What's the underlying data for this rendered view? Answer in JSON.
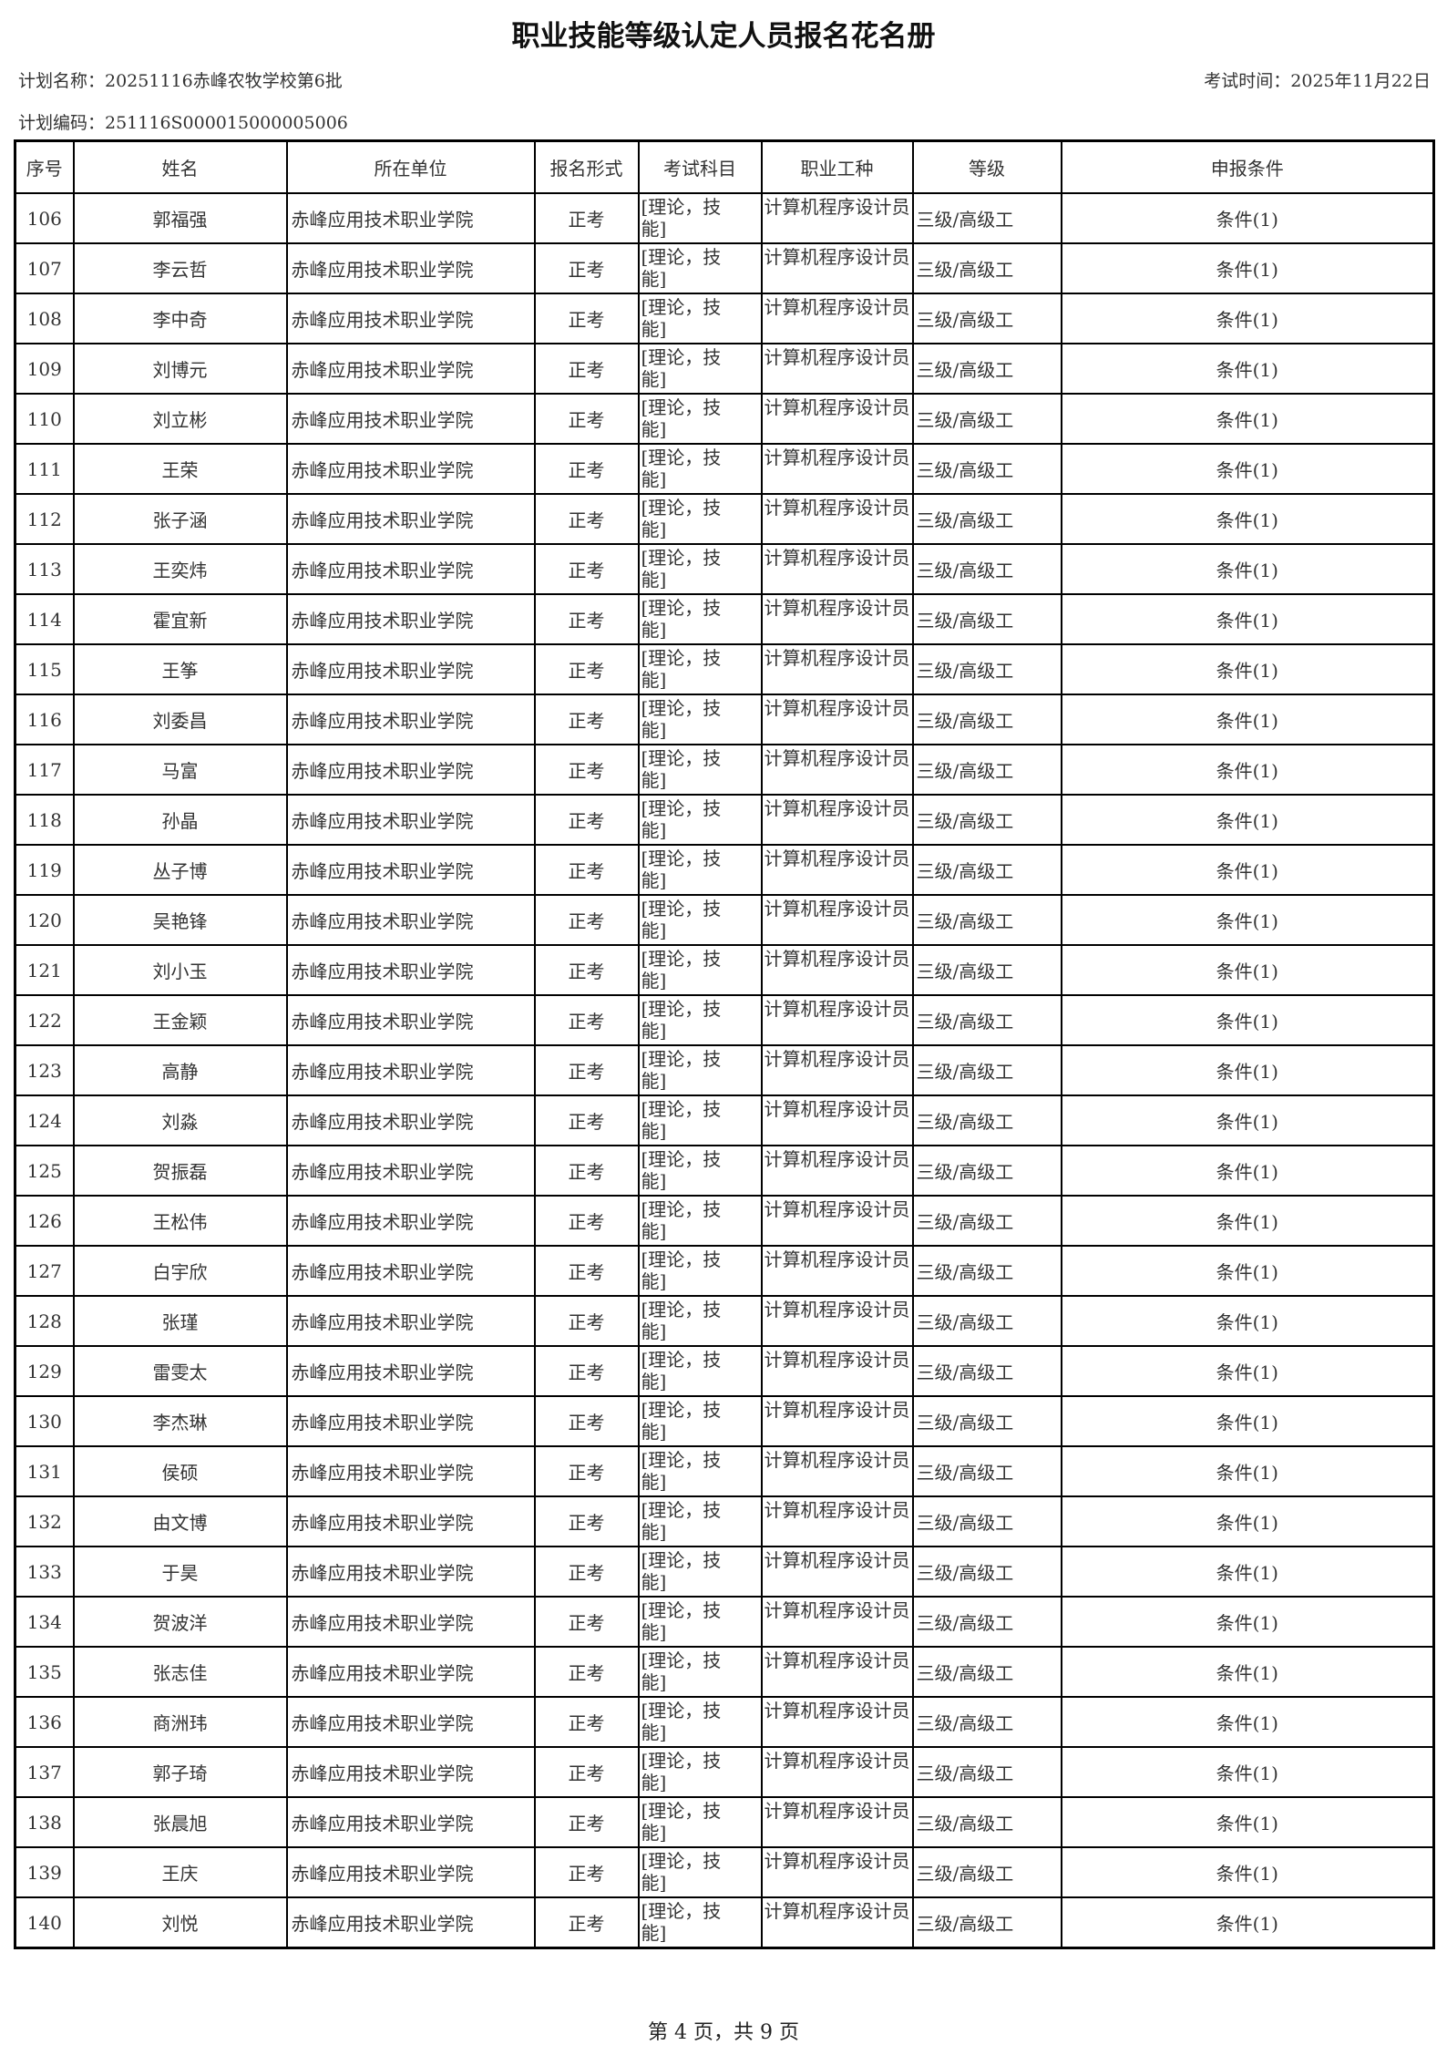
{
  "title": "职业技能等级认定人员报名花名册",
  "plan_name": "计划名称：20251116赤峰农牧学校第6批",
  "exam_time": "考试时间：2025年11月22日",
  "plan_code": "计划编码：251116S000015000005006",
  "columns": [
    "序号",
    "姓名",
    "所在单位",
    "报名形式",
    "考试科目",
    "职业工种",
    "等级",
    "申报条件"
  ],
  "common": {
    "unit": "赤峰应用技术职业学院",
    "form": "正考",
    "subjects": "[理论，技能]",
    "occupation": "计算机程序设计员",
    "level": "三级/高级工",
    "condition": "条件(1)"
  },
  "rows": [
    {
      "no": "106",
      "name": "郭福强"
    },
    {
      "no": "107",
      "name": "李云哲"
    },
    {
      "no": "108",
      "name": "李中奇"
    },
    {
      "no": "109",
      "name": "刘博元"
    },
    {
      "no": "110",
      "name": "刘立彬"
    },
    {
      "no": "111",
      "name": "王荣"
    },
    {
      "no": "112",
      "name": "张子涵"
    },
    {
      "no": "113",
      "name": "王奕炜"
    },
    {
      "no": "114",
      "name": "霍宜新"
    },
    {
      "no": "115",
      "name": "王筝"
    },
    {
      "no": "116",
      "name": "刘委昌"
    },
    {
      "no": "117",
      "name": "马富"
    },
    {
      "no": "118",
      "name": "孙晶"
    },
    {
      "no": "119",
      "name": "丛子博"
    },
    {
      "no": "120",
      "name": "吴艳锋"
    },
    {
      "no": "121",
      "name": "刘小玉"
    },
    {
      "no": "122",
      "name": "王金颖"
    },
    {
      "no": "123",
      "name": "高静"
    },
    {
      "no": "124",
      "name": "刘淼"
    },
    {
      "no": "125",
      "name": "贺振磊"
    },
    {
      "no": "126",
      "name": "王松伟"
    },
    {
      "no": "127",
      "name": "白宇欣"
    },
    {
      "no": "128",
      "name": "张瑾"
    },
    {
      "no": "129",
      "name": "雷雯太"
    },
    {
      "no": "130",
      "name": "李杰琳"
    },
    {
      "no": "131",
      "name": "侯硕"
    },
    {
      "no": "132",
      "name": "由文博"
    },
    {
      "no": "133",
      "name": "于昊"
    },
    {
      "no": "134",
      "name": "贺波洋"
    },
    {
      "no": "135",
      "name": "张志佳"
    },
    {
      "no": "136",
      "name": "商洲玮"
    },
    {
      "no": "137",
      "name": "郭子琦"
    },
    {
      "no": "138",
      "name": "张晨旭"
    },
    {
      "no": "139",
      "name": "王庆"
    },
    {
      "no": "140",
      "name": "刘悦"
    }
  ],
  "footer": "第 4 页，共 9 页"
}
